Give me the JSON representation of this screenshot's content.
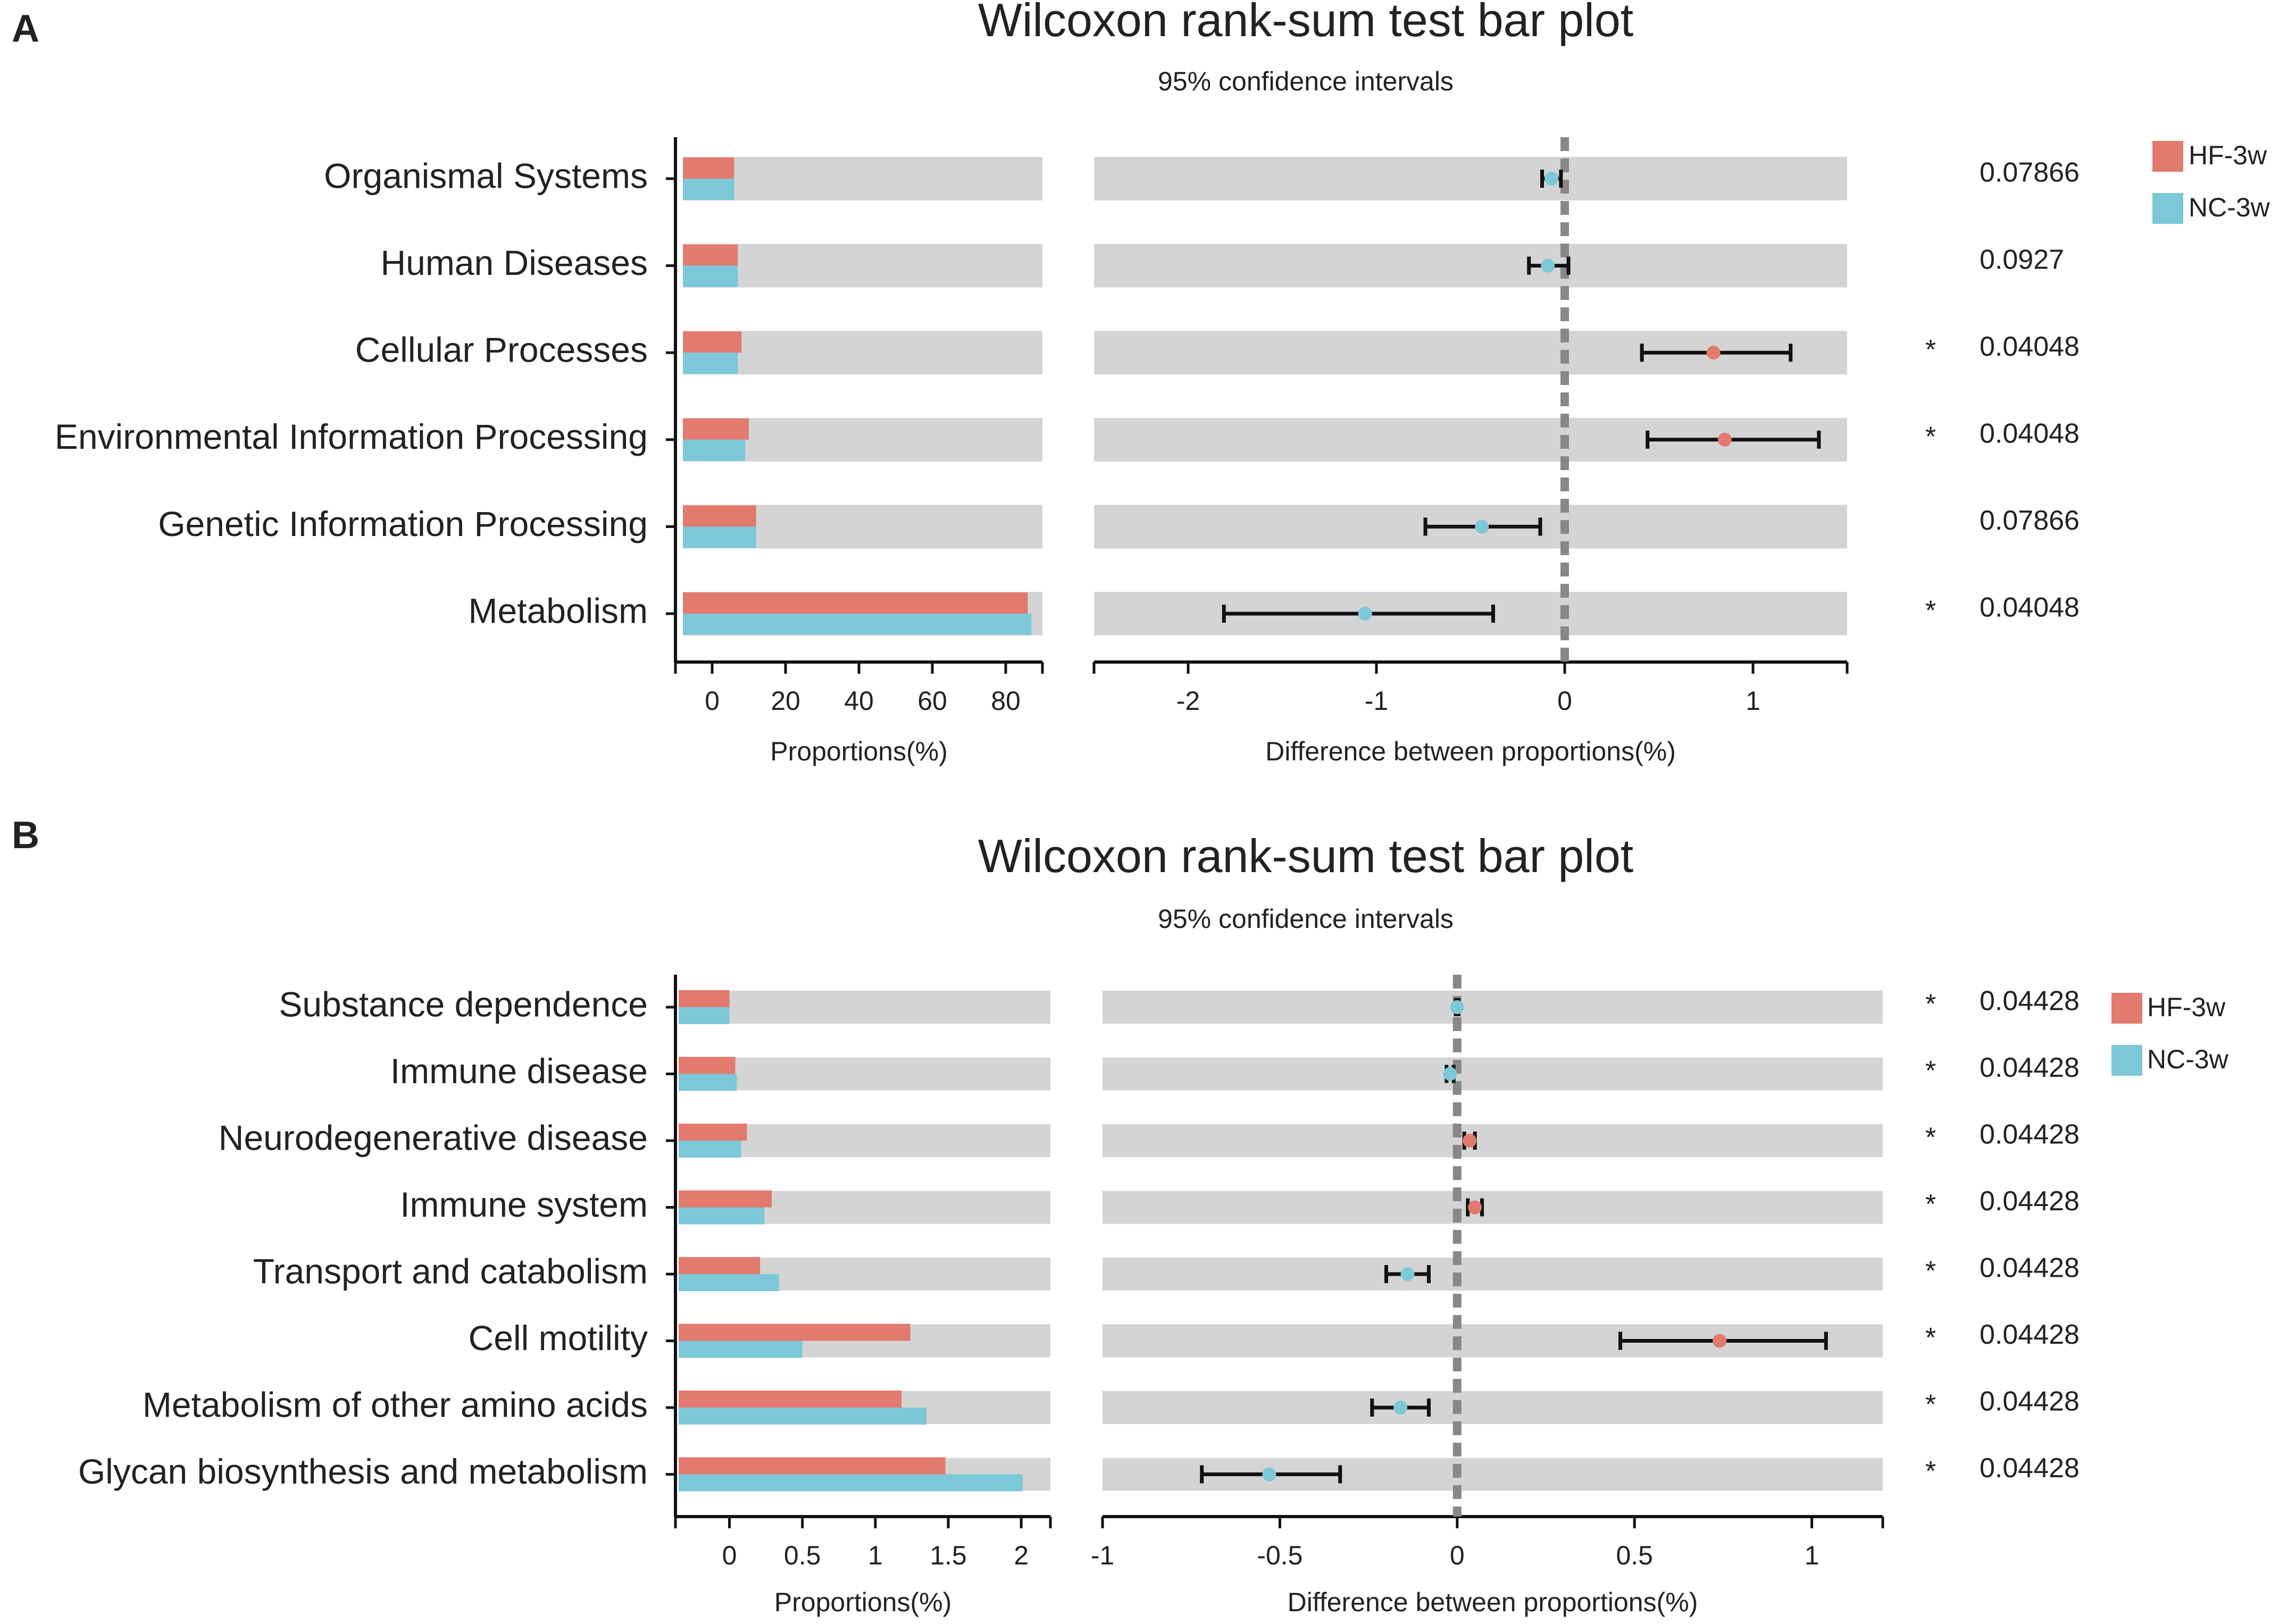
{
  "chart_data": [
    {
      "panel": "A",
      "type": "bar",
      "title": "Wilcoxon rank-sum test bar plot",
      "subtitle": "95% confidence intervals",
      "categories": [
        "Organismal Systems",
        "Human Diseases",
        "Cellular Processes",
        "Environmental Information Processing",
        "Genetic Information Processing",
        "Metabolism"
      ],
      "series": [
        {
          "name": "HF-3w",
          "color": "#e27a6e",
          "values": [
            6,
            7,
            8,
            10,
            12,
            86
          ]
        },
        {
          "name": "NC-3w",
          "color": "#7cc8d8",
          "values": [
            6,
            7,
            7,
            9,
            12,
            87
          ]
        }
      ],
      "proportions_xlabel": "Proportions(%)",
      "proportions_xlim": [
        -10,
        90
      ],
      "proportions_ticks": [
        0,
        20,
        40,
        60,
        80
      ],
      "difference_xlabel": "Difference between proportions(%)",
      "difference_xlim": [
        -2.5,
        1.5
      ],
      "difference_ticks": [
        -2,
        -1,
        0,
        1
      ],
      "difference": [
        {
          "mean": -0.07,
          "low": -0.12,
          "high": -0.02,
          "group": "NC-3w"
        },
        {
          "mean": -0.09,
          "low": -0.19,
          "high": 0.02,
          "group": "NC-3w"
        },
        {
          "mean": 0.79,
          "low": 0.41,
          "high": 1.2,
          "group": "HF-3w"
        },
        {
          "mean": 0.85,
          "low": 0.44,
          "high": 1.35,
          "group": "HF-3w"
        },
        {
          "mean": -0.44,
          "low": -0.74,
          "high": -0.13,
          "group": "NC-3w"
        },
        {
          "mean": -1.06,
          "low": -1.81,
          "high": -0.38,
          "group": "NC-3w"
        }
      ],
      "significant": [
        false,
        false,
        true,
        true,
        false,
        true
      ],
      "star_symbol": "*",
      "p_values": [
        "0.07866",
        "0.0927",
        "0.04048",
        "0.04048",
        "0.07866",
        "0.04048"
      ],
      "legend": [
        {
          "label": "HF-3w",
          "color": "#e27a6e"
        },
        {
          "label": "NC-3w",
          "color": "#7cc8d8"
        }
      ]
    },
    {
      "panel": "B",
      "type": "bar",
      "title": "Wilcoxon rank-sum test bar plot",
      "subtitle": "95% confidence intervals",
      "categories": [
        "Substance dependence",
        "Immune disease",
        "Neurodegenerative disease",
        "Immune system",
        "Transport and catabolism",
        "Cell motility",
        "Metabolism of other amino acids",
        "Glycan biosynthesis and metabolism"
      ],
      "series": [
        {
          "name": "HF-3w",
          "color": "#e27a6e",
          "values": [
            0.0,
            0.04,
            0.12,
            0.29,
            0.21,
            1.24,
            1.18,
            1.48
          ]
        },
        {
          "name": "NC-3w",
          "color": "#7cc8d8",
          "values": [
            0.0,
            0.05,
            0.08,
            0.24,
            0.34,
            0.5,
            1.35,
            2.01
          ]
        }
      ],
      "proportions_xlabel": "Proportions(%)",
      "proportions_xlim": [
        -0.37,
        2.2
      ],
      "proportions_ticks": [
        0,
        0.5,
        1,
        1.5,
        2
      ],
      "difference_xlabel": "Difference between proportions(%)",
      "difference_xlim": [
        -1,
        1.2
      ],
      "difference_ticks": [
        -1,
        -0.5,
        0,
        0.5,
        1
      ],
      "difference": [
        {
          "mean": 0.0,
          "low": -0.004,
          "high": 0.004,
          "group": "NC-3w"
        },
        {
          "mean": -0.02,
          "low": -0.03,
          "high": -0.01,
          "group": "NC-3w"
        },
        {
          "mean": 0.035,
          "low": 0.02,
          "high": 0.05,
          "group": "HF-3w"
        },
        {
          "mean": 0.05,
          "low": 0.03,
          "high": 0.07,
          "group": "HF-3w"
        },
        {
          "mean": -0.14,
          "low": -0.2,
          "high": -0.08,
          "group": "NC-3w"
        },
        {
          "mean": 0.74,
          "low": 0.46,
          "high": 1.04,
          "group": "HF-3w"
        },
        {
          "mean": -0.16,
          "low": -0.24,
          "high": -0.08,
          "group": "NC-3w"
        },
        {
          "mean": -0.53,
          "low": -0.72,
          "high": -0.33,
          "group": "NC-3w"
        }
      ],
      "significant": [
        true,
        true,
        true,
        true,
        true,
        true,
        true,
        true
      ],
      "star_symbol": "*",
      "p_values": [
        "0.04428",
        "0.04428",
        "0.04428",
        "0.04428",
        "0.04428",
        "0.04428",
        "0.04428",
        "0.04428"
      ],
      "legend": [
        {
          "label": "HF-3w",
          "color": "#e27a6e"
        },
        {
          "label": "NC-3w",
          "color": "#7cc8d8"
        }
      ]
    }
  ]
}
